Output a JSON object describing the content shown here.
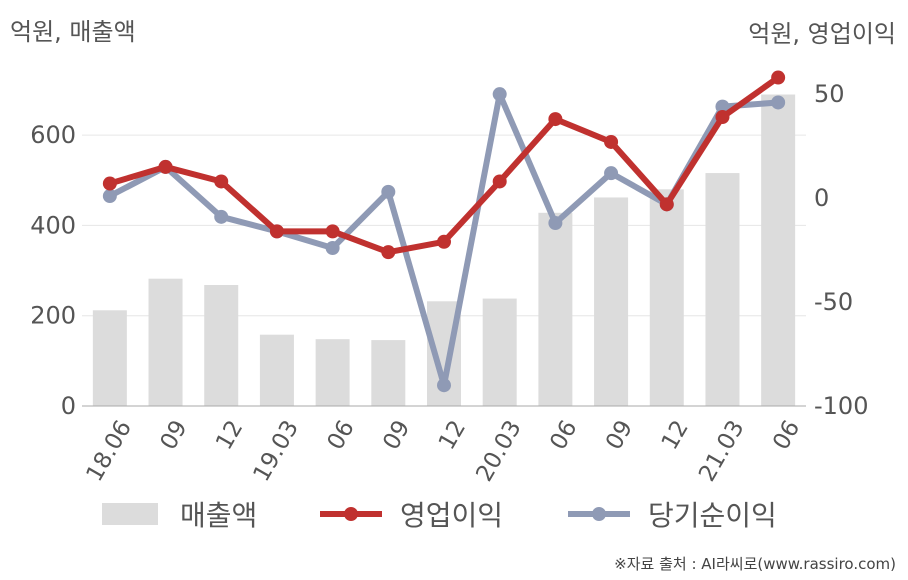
{
  "units": {
    "left": "억원, 매출액",
    "right": "억원, 영업이익"
  },
  "legend": {
    "revenue": "매출액",
    "op_profit": "영업이익",
    "net_profit": "당기순이익"
  },
  "source": "※자료 출처 : AI라씨로(www.rassiro.com)",
  "colors": {
    "bar": "#dcdcdc",
    "op_profit": "#c0312f",
    "net_profit": "#8f9ab5",
    "grid": "#e6e6e6",
    "axis": "#aaaaaa"
  },
  "chart_data": {
    "type": "bar+line",
    "categories": [
      "18.06",
      "09",
      "12",
      "19.03",
      "06",
      "09",
      "12",
      "20.03",
      "06",
      "09",
      "12",
      "21.03",
      "06"
    ],
    "left_axis": {
      "label": "억원, 매출액",
      "ylim": [
        0,
        700
      ],
      "ticks": [
        0,
        200,
        400,
        600
      ]
    },
    "right_axis": {
      "label": "억원, 영업이익",
      "ylim": [
        -100,
        52
      ],
      "ticks": [
        -100,
        -50,
        0,
        50
      ]
    },
    "series": [
      {
        "name": "매출액",
        "kind": "bar",
        "axis": "left",
        "values": [
          212,
          282,
          268,
          158,
          148,
          146,
          232,
          238,
          428,
          462,
          480,
          516,
          690
        ]
      },
      {
        "name": "영업이익",
        "kind": "line",
        "axis": "right",
        "values": [
          7,
          15,
          8,
          -16,
          -16,
          -26,
          -21,
          8,
          38,
          27,
          -3,
          39,
          58
        ]
      },
      {
        "name": "당기순이익",
        "kind": "line",
        "axis": "right",
        "values": [
          1,
          15,
          -9,
          -16,
          -24,
          3,
          -90,
          50,
          -12,
          12,
          -3,
          44,
          46
        ]
      }
    ]
  }
}
